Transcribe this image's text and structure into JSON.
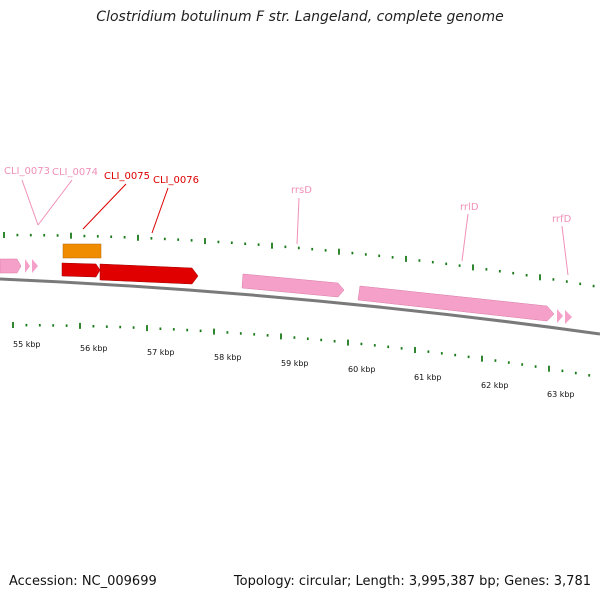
{
  "title": "Clostridium botulinum F str. Langeland, complete genome",
  "footer": {
    "accession": "Accession: NC_009699",
    "topology": "Topology: circular; Length: 3,995,387 bp; Genes: 3,781"
  },
  "colors": {
    "highlight": "#dd0000",
    "rna": "#f5a0c8",
    "orange": "#f08c00",
    "tick": "#1a7a1a",
    "backbone": "#7a7a7a"
  },
  "gene_labels": [
    {
      "text": "CLI_0073",
      "color": "#f090b8"
    },
    {
      "text": "CLI_0074",
      "color": "#f090b8"
    },
    {
      "text": "CLI_0075",
      "color": "#dd0000"
    },
    {
      "text": "CLI_0076",
      "color": "#dd0000"
    },
    {
      "text": "rrsD",
      "color": "#f090b8"
    },
    {
      "text": "rrlD",
      "color": "#f090b8"
    },
    {
      "text": "rrfD",
      "color": "#f090b8"
    }
  ],
  "kbp_labels": [
    "55 kbp",
    "56 kbp",
    "57 kbp",
    "58 kbp",
    "59 kbp",
    "60 kbp",
    "61 kbp",
    "62 kbp",
    "63 kbp"
  ]
}
